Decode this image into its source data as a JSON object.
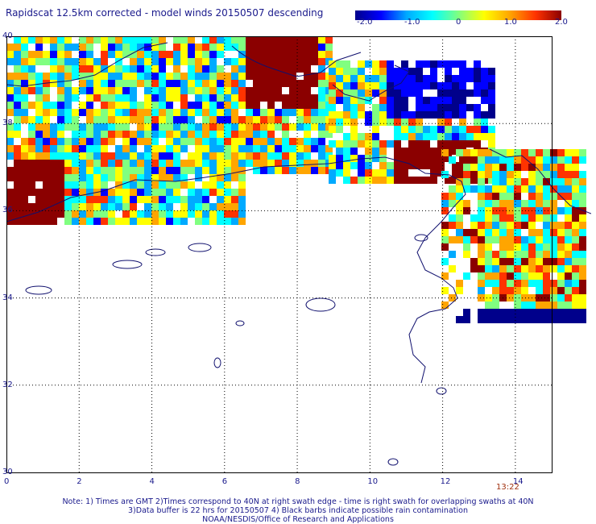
{
  "title": "Rapidscat 12.5km corrected - model winds 20150507 descending",
  "colorbar": {
    "labels": [
      "-2.0",
      "-1.0",
      "0",
      "1.0",
      "2.0"
    ],
    "range": [
      -2.0,
      2.0
    ],
    "stops": [
      "#00008b",
      "#0000ff",
      "#00aaff",
      "#00ffff",
      "#80ff80",
      "#ffff00",
      "#ffa500",
      "#ff3300",
      "#8b0000"
    ]
  },
  "axes": {
    "x_ticks": [
      "0",
      "2",
      "4",
      "6",
      "8",
      "10",
      "12",
      "14"
    ],
    "y_ticks": [
      "40",
      "38",
      "36",
      "34",
      "32",
      "30"
    ],
    "lon_range": [
      0,
      15
    ],
    "lat_range": [
      30,
      40
    ]
  },
  "time_label": "13:22",
  "notes": [
    "Note: 1) Times are GMT 2)Times correspond to 40N at right swath edge - time is right swath for overlapping swaths at 40N",
    "3)Data buffer is 22 hrs for 20150507 4) Black barbs indicate possible rain contamination",
    "NOAA/NESDIS/Office of Research and Applications"
  ],
  "colors": {
    "text": "#1a1a8c",
    "coast": "#10106e",
    "grid": "#000000",
    "time": "#a0300e"
  }
}
